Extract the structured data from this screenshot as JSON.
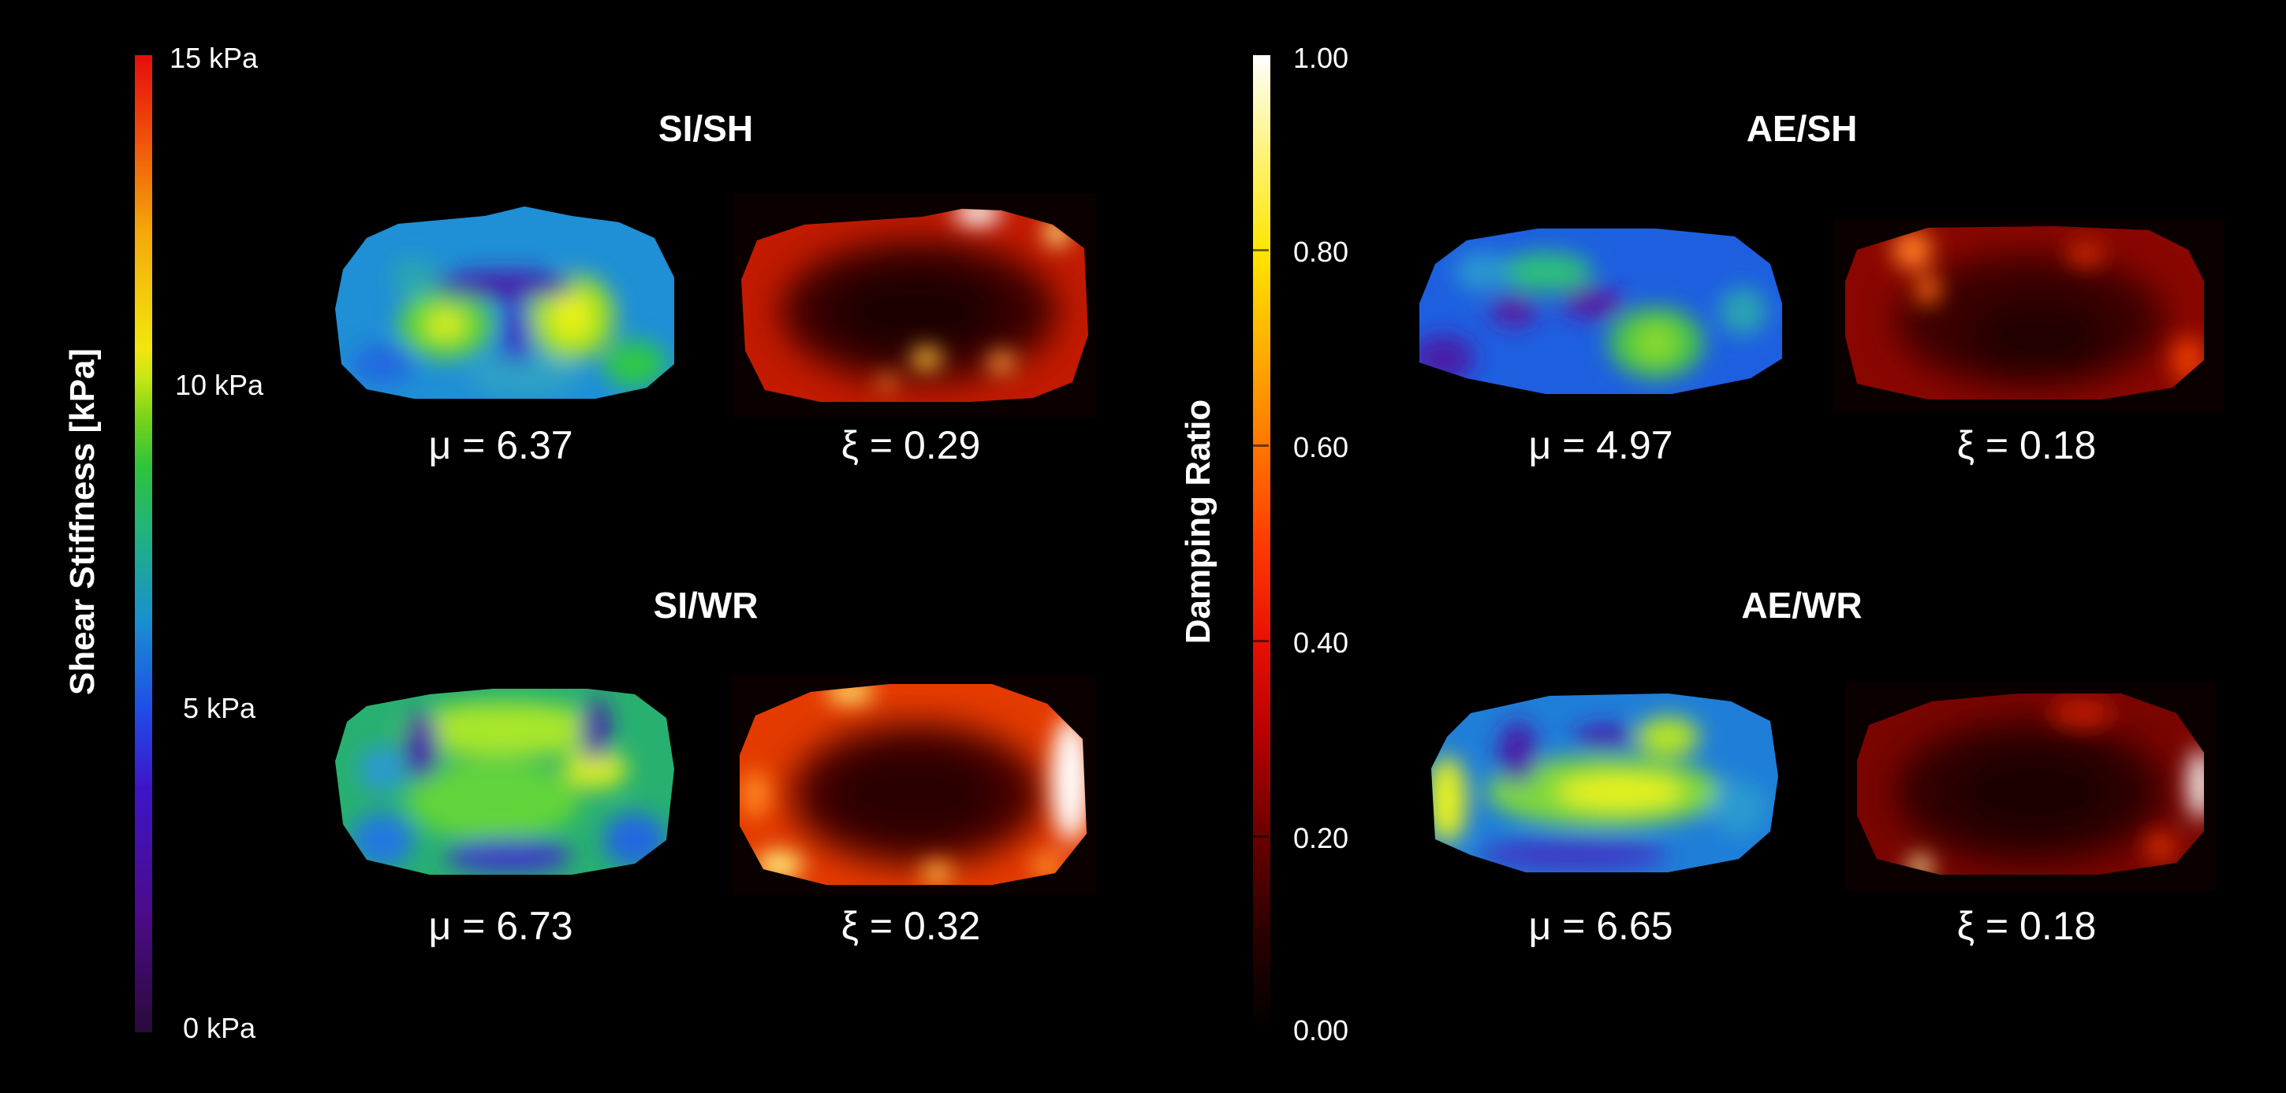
{
  "colorbars": {
    "stiffness": {
      "title": "Shear Stiffness [kPa]",
      "ticks": [
        "15 kPa",
        "10 kPa",
        "5 kPa",
        "0 kPa"
      ],
      "range": [
        0,
        15
      ],
      "colormap": "jet-like (purple-blue-green-yellow-red)"
    },
    "damping": {
      "title": "Damping Ratio",
      "ticks": [
        "1.00",
        "0.80",
        "0.60",
        "0.40",
        "0.20",
        "0.00"
      ],
      "range": [
        0,
        1
      ],
      "colormap": "hot (black-red-yellow-white)"
    }
  },
  "panels": [
    {
      "title": "SI/SH",
      "mu_label": "μ = 6.37",
      "xi_label": "ξ = 0.29"
    },
    {
      "title": "SI/WR",
      "mu_label": "μ = 6.73",
      "xi_label": "ξ = 0.32"
    },
    {
      "title": "AE/SH",
      "mu_label": "μ = 4.97",
      "xi_label": "ξ = 0.18"
    },
    {
      "title": "AE/WR",
      "mu_label": "μ = 6.65",
      "xi_label": "ξ = 0.18"
    }
  ],
  "colors": {
    "background": "#000000",
    "text": "#ffffff"
  }
}
